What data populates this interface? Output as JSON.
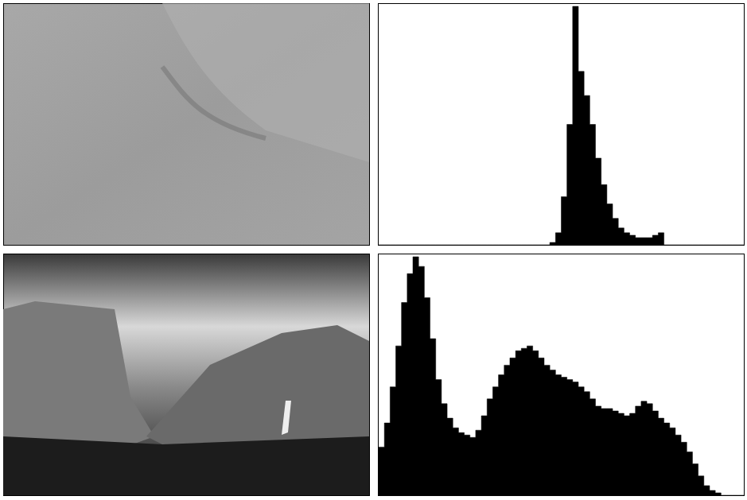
{
  "chart_data": [
    {
      "type": "histogram",
      "bins": [
        0,
        4,
        8,
        12,
        16,
        20,
        24,
        28,
        32,
        36,
        40,
        44,
        48,
        52,
        56,
        60,
        64,
        68,
        72,
        76,
        80,
        84,
        88,
        92,
        96,
        100,
        104,
        108,
        112,
        116,
        120,
        124,
        128,
        132,
        136,
        140,
        144,
        148,
        152,
        156,
        160,
        164,
        168,
        172,
        176,
        180,
        184,
        188,
        192,
        196,
        200,
        204,
        208,
        212,
        216,
        220,
        224,
        228,
        232,
        236,
        240,
        244,
        248,
        252,
        256
      ],
      "values": [
        0,
        0,
        0,
        0,
        0,
        0,
        0,
        0,
        0,
        0,
        0,
        0,
        0,
        0,
        0,
        0,
        0,
        0,
        0,
        0,
        0,
        0,
        0,
        0,
        0,
        0,
        0,
        0,
        0,
        0,
        1,
        5,
        20,
        50,
        99,
        72,
        62,
        50,
        36,
        25,
        17,
        11,
        7,
        5,
        4,
        3,
        3,
        3,
        4,
        5,
        0,
        0,
        0,
        0,
        0,
        0,
        0,
        0,
        0,
        0,
        0,
        0,
        0,
        0
      ],
      "color": "#000000",
      "xlim": [
        0,
        256
      ],
      "ylim": [
        0,
        100
      ],
      "grid": false,
      "tick_labels": false
    },
    {
      "type": "histogram",
      "bins": [
        0,
        4,
        8,
        12,
        16,
        20,
        24,
        28,
        32,
        36,
        40,
        44,
        48,
        52,
        56,
        60,
        64,
        68,
        72,
        76,
        80,
        84,
        88,
        92,
        96,
        100,
        104,
        108,
        112,
        116,
        120,
        124,
        128,
        132,
        136,
        140,
        144,
        148,
        152,
        156,
        160,
        164,
        168,
        172,
        176,
        180,
        184,
        188,
        192,
        196,
        200,
        204,
        208,
        212,
        216,
        220,
        224,
        228,
        232,
        236,
        240,
        244,
        248,
        252,
        256
      ],
      "values": [
        20,
        30,
        45,
        62,
        80,
        92,
        99,
        95,
        82,
        65,
        48,
        38,
        32,
        28,
        26,
        25,
        24,
        27,
        33,
        40,
        45,
        50,
        54,
        57,
        60,
        61,
        62,
        60,
        57,
        54,
        52,
        50,
        49,
        48,
        47,
        45,
        43,
        40,
        37,
        36,
        36,
        35,
        34,
        33,
        34,
        37,
        39,
        38,
        35,
        32,
        30,
        28,
        25,
        22,
        18,
        13,
        8,
        4,
        2,
        1,
        0,
        0,
        0,
        0
      ],
      "color": "#000000",
      "xlim": [
        0,
        256
      ],
      "ylim": [
        0,
        100
      ],
      "grid": false,
      "tick_labels": false
    }
  ]
}
